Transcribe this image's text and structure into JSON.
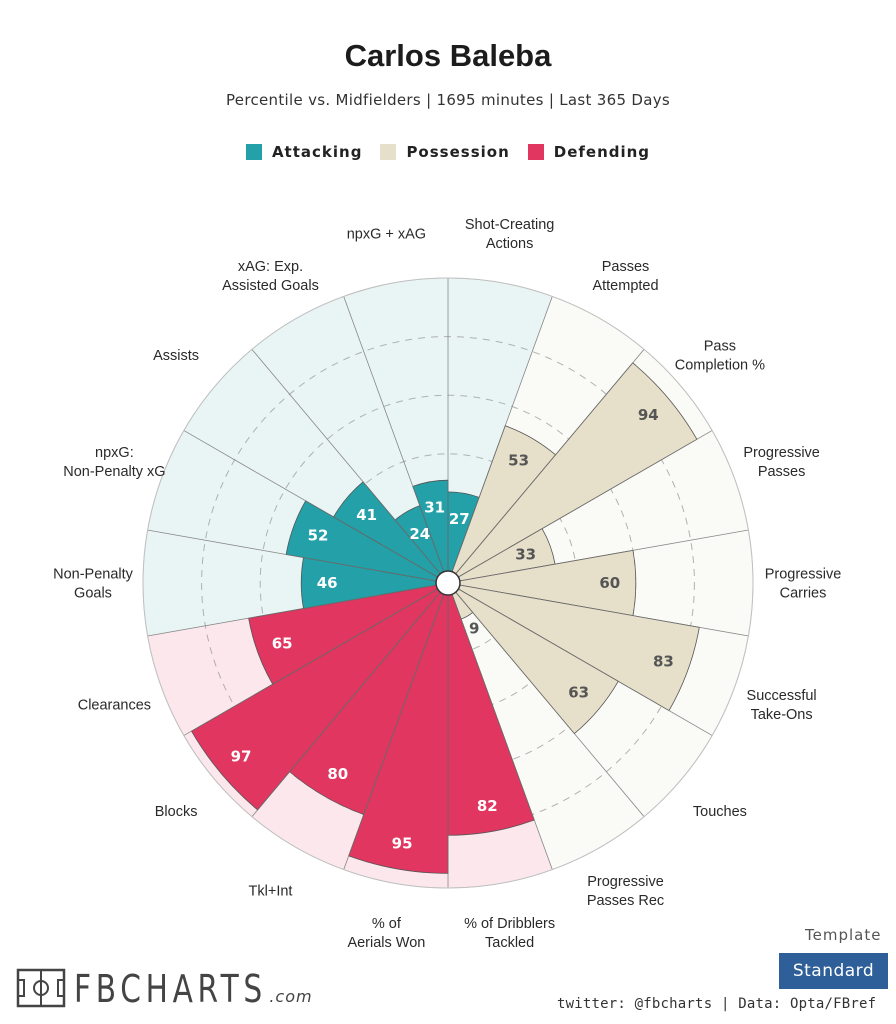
{
  "header": {
    "title": "Carlos Baleba",
    "subtitle": "Percentile vs. Midfielders | 1695 minutes | Last 365 Days"
  },
  "legend": [
    {
      "label": "Attacking",
      "color": "#23a0a8"
    },
    {
      "label": "Possession",
      "color": "#e6dfc9"
    },
    {
      "label": "Defending",
      "color": "#e0365f"
    }
  ],
  "chart_data": {
    "type": "polar-bar",
    "title": "Carlos Baleba",
    "subtitle": "Percentile vs. Midfielders | 1695 minutes | Last 365 Days",
    "range": [
      0,
      100
    ],
    "grid_rings": [
      20,
      40,
      60,
      80
    ],
    "categories": [
      {
        "label": "Shot-Creating Actions",
        "group": "Attacking",
        "value": 27
      },
      {
        "label": "Passes Attempted",
        "group": "Possession",
        "value": 53
      },
      {
        "label": "Pass Completion %",
        "group": "Possession",
        "value": 94
      },
      {
        "label": "Progressive Passes",
        "group": "Possession",
        "value": 33
      },
      {
        "label": "Progressive Carries",
        "group": "Possession",
        "value": 60
      },
      {
        "label": "Successful Take-Ons",
        "group": "Possession",
        "value": 83
      },
      {
        "label": "Touches",
        "group": "Possession",
        "value": 63
      },
      {
        "label": "Progressive Passes Rec",
        "group": "Possession",
        "value": 9
      },
      {
        "label": "% of Dribblers Tackled",
        "group": "Defending",
        "value": 82
      },
      {
        "label": "% of Aerials Won",
        "group": "Defending",
        "value": 95
      },
      {
        "label": "Tkl+Int",
        "group": "Defending",
        "value": 80
      },
      {
        "label": "Blocks",
        "group": "Defending",
        "value": 97
      },
      {
        "label": "Clearances",
        "group": "Defending",
        "value": 65
      },
      {
        "label": "Non-Penalty Goals",
        "group": "Attacking",
        "value": 46
      },
      {
        "label": "npxG: Non-Penalty xG",
        "group": "Attacking",
        "value": 52
      },
      {
        "label": "Assists",
        "group": "Attacking",
        "value": 41
      },
      {
        "label": "xAG: Exp. Assisted Goals",
        "group": "Attacking",
        "value": 24
      },
      {
        "label": "npxG + xAG",
        "group": "Attacking",
        "value": 31
      }
    ],
    "colors": {
      "Attacking": {
        "bar": "#23a0a8",
        "bg": "#e9f5f5",
        "text": "#ffffff"
      },
      "Possession": {
        "bar": "#e6dfc9",
        "bg": "#fafaf7",
        "text": "#555555"
      },
      "Defending": {
        "bar": "#e0365f",
        "bg": "#fbe7ec",
        "text": "#ffffff"
      }
    }
  },
  "branding": {
    "logo_text": "FBCHARTS",
    "logo_suffix": ".com",
    "template_label": "Template",
    "template_button": "Standard",
    "footer": "twitter: @fbcharts | Data: Opta/FBref"
  }
}
